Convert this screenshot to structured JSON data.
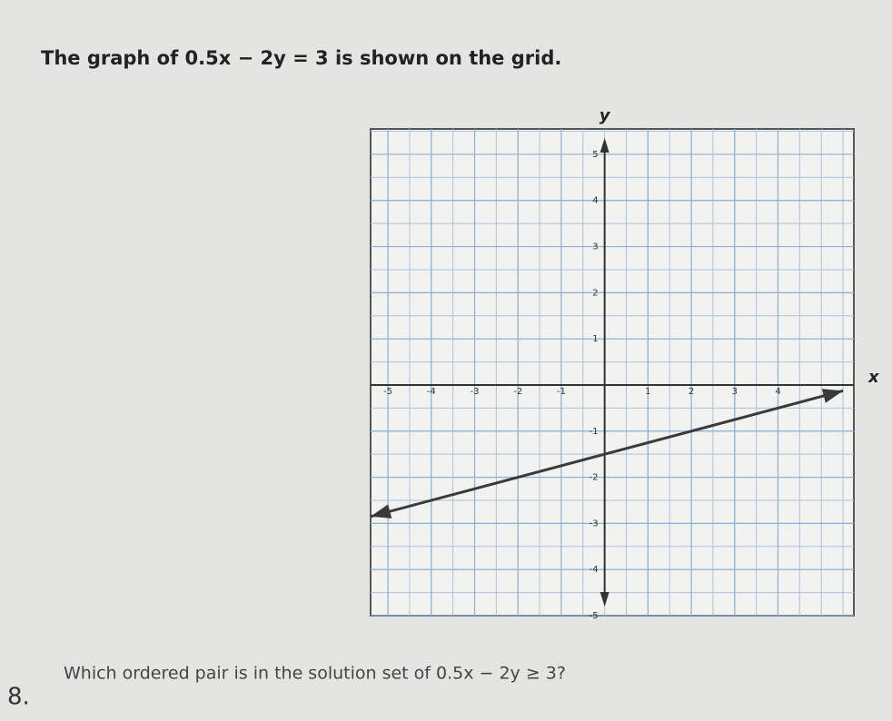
{
  "header": {
    "title": "The graph of 0.5x − 2y = 3 is shown on the grid."
  },
  "chart_data": {
    "type": "line",
    "x_label": "x",
    "y_label": "y",
    "xlim": [
      -5.4,
      5.75
    ],
    "ylim": [
      -5,
      5.55
    ],
    "xticks": [
      -5,
      -4,
      -3,
      -2,
      -1,
      1,
      2,
      3,
      4
    ],
    "yticks": [
      -5,
      -4,
      -3,
      -2,
      -1,
      1,
      2,
      3,
      4,
      5
    ],
    "grid": true,
    "series": [
      {
        "color": "#3a3a3a",
        "x": [
          -5.4,
          5.5
        ],
        "values": [
          -2.85,
          -0.125
        ]
      }
    ]
  },
  "question": {
    "number": "8.",
    "text": "Which ordered pair is in the solution set of 0.5x − 2y ≥ 3?"
  }
}
